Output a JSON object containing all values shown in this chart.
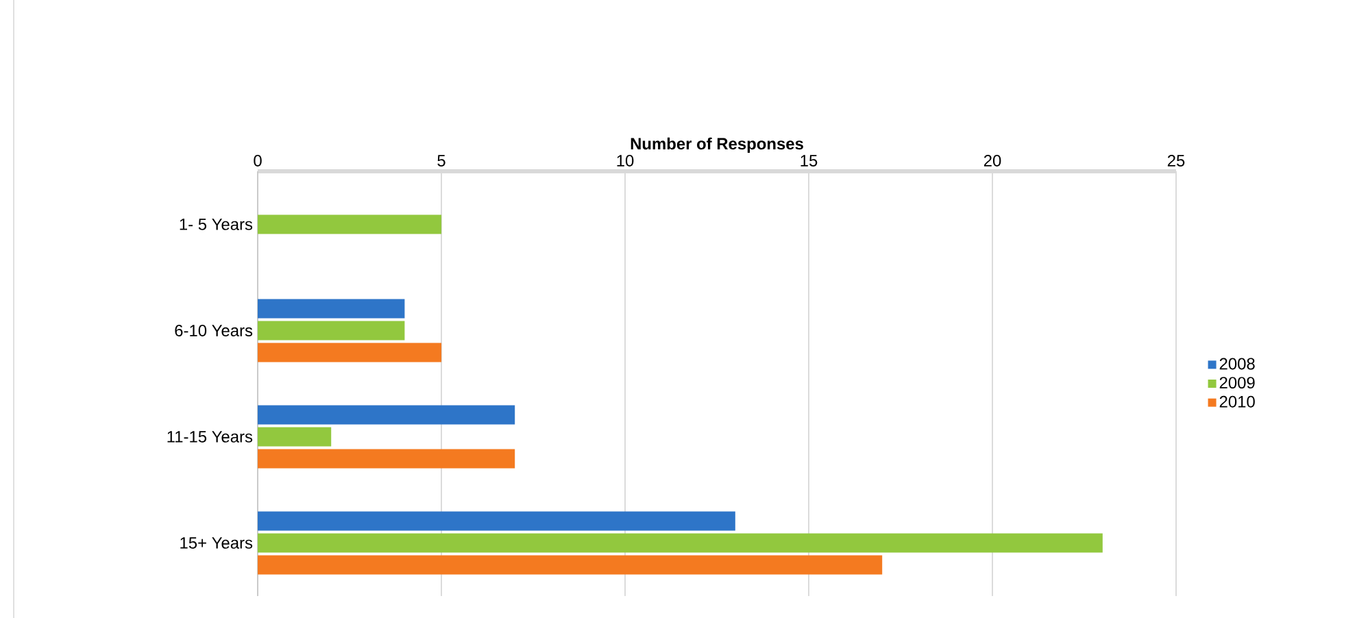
{
  "chart_data": {
    "type": "bar",
    "orientation": "horizontal",
    "title": "Number of Responses",
    "categories": [
      "1- 5 Years",
      "6-10 Years",
      "11-15 Years",
      "15+ Years"
    ],
    "series": [
      {
        "name": "2008",
        "color": "#2e75c8",
        "values": [
          null,
          4,
          7,
          13
        ]
      },
      {
        "name": "2009",
        "color": "#92c83e",
        "values": [
          5,
          4,
          2,
          23
        ]
      },
      {
        "name": "2010",
        "color": "#f47a20",
        "values": [
          null,
          5,
          7,
          17
        ]
      }
    ],
    "xlim": [
      0,
      25
    ],
    "xticks": [
      0,
      5,
      10,
      15,
      20,
      25
    ],
    "grid": "x",
    "legend": "right"
  }
}
